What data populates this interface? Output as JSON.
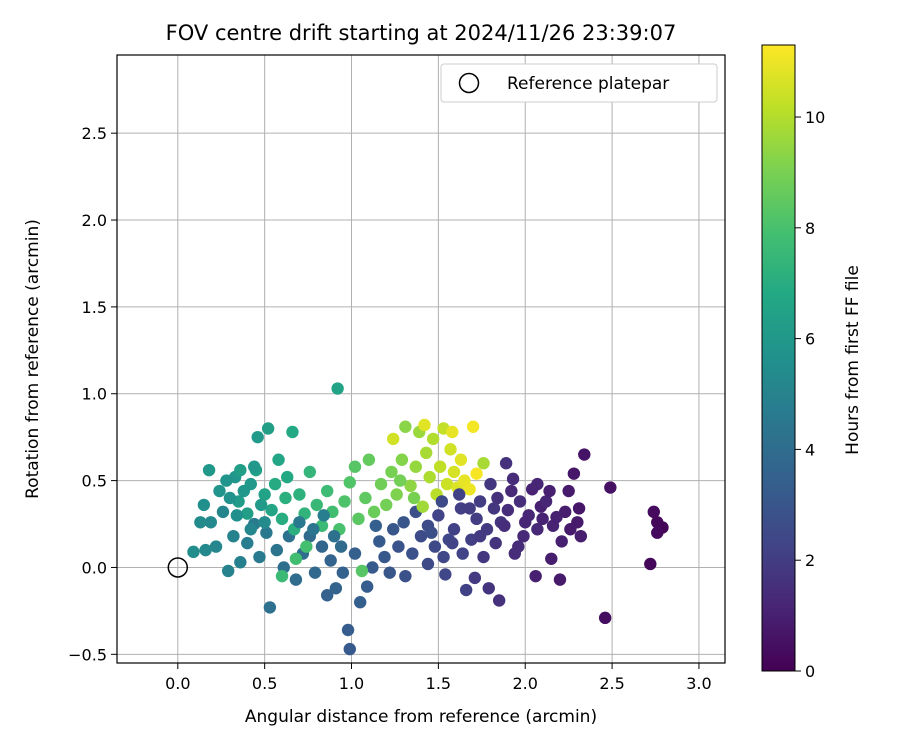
{
  "chart_data": {
    "type": "scatter",
    "title": "FOV centre drift starting at 2024/11/26 23:39:07",
    "xlabel": "Angular distance from reference (arcmin)",
    "ylabel": "Rotation from reference (arcmin)",
    "xlim": [
      -0.35,
      3.15
    ],
    "ylim": [
      -0.55,
      2.95
    ],
    "xticks": [
      "0.0",
      "0.5",
      "1.0",
      "1.5",
      "2.0",
      "2.5",
      "3.0"
    ],
    "yticks": [
      "−0.5",
      "0.0",
      "0.5",
      "1.0",
      "1.5",
      "2.0",
      "2.5"
    ],
    "grid": true,
    "legend": {
      "position": "top-right",
      "entries": [
        "Reference platepar"
      ]
    },
    "colorbar": {
      "label": "Hours from first FF file",
      "range": [
        0,
        11.3
      ],
      "ticks": [
        "0",
        "2",
        "4",
        "6",
        "8",
        "10"
      ],
      "colormap": "viridis"
    },
    "reference_point": {
      "x": 0.0,
      "y": 0.0
    },
    "points": [
      [
        2.79,
        0.23,
        0.1
      ],
      [
        2.76,
        0.26,
        0.2
      ],
      [
        2.76,
        0.2,
        0.3
      ],
      [
        2.74,
        0.32,
        0.3
      ],
      [
        2.72,
        0.02,
        0.2
      ],
      [
        2.49,
        0.46,
        0.5
      ],
      [
        2.46,
        -0.29,
        0.4
      ],
      [
        2.34,
        0.65,
        0.6
      ],
      [
        2.28,
        0.54,
        0.7
      ],
      [
        2.25,
        0.44,
        0.8
      ],
      [
        2.31,
        0.34,
        0.7
      ],
      [
        2.3,
        0.26,
        0.8
      ],
      [
        2.23,
        0.32,
        0.9
      ],
      [
        2.32,
        0.18,
        0.9
      ],
      [
        2.21,
        0.15,
        1.0
      ],
      [
        2.16,
        0.24,
        1.1
      ],
      [
        2.15,
        0.05,
        0.9
      ],
      [
        2.18,
        0.29,
        1.0
      ],
      [
        2.09,
        0.35,
        1.0
      ],
      [
        2.04,
        0.45,
        1.1
      ],
      [
        2.07,
        0.48,
        1.2
      ],
      [
        2.12,
        0.38,
        1.2
      ],
      [
        2.07,
        0.22,
        1.3
      ],
      [
        2.02,
        0.3,
        1.2
      ],
      [
        2.06,
        -0.05,
        1.0
      ],
      [
        2.2,
        -0.07,
        0.8
      ],
      [
        1.99,
        0.18,
        1.3
      ],
      [
        1.96,
        0.12,
        1.4
      ],
      [
        1.97,
        0.38,
        1.5
      ],
      [
        1.93,
        0.51,
        1.4
      ],
      [
        1.89,
        0.6,
        1.6
      ],
      [
        1.9,
        0.33,
        1.5
      ],
      [
        1.86,
        0.26,
        1.7
      ],
      [
        1.84,
        0.4,
        1.6
      ],
      [
        1.83,
        0.14,
        1.7
      ],
      [
        1.8,
        0.48,
        1.8
      ],
      [
        1.82,
        0.34,
        1.8
      ],
      [
        1.78,
        0.22,
        1.9
      ],
      [
        1.76,
        0.06,
        1.8
      ],
      [
        1.74,
        0.38,
        2.0
      ],
      [
        1.72,
        0.28,
        2.0
      ],
      [
        1.69,
        0.16,
        2.1
      ],
      [
        1.71,
        -0.06,
        1.9
      ],
      [
        1.85,
        -0.19,
        1.6
      ],
      [
        1.79,
        -0.12,
        1.7
      ],
      [
        1.66,
        -0.13,
        2.2
      ],
      [
        1.63,
        0.34,
        2.1
      ],
      [
        1.64,
        0.08,
        2.3
      ],
      [
        1.59,
        0.22,
        2.2
      ],
      [
        1.56,
        0.16,
        2.4
      ],
      [
        1.53,
        0.06,
        2.4
      ],
      [
        1.5,
        0.3,
        2.3
      ],
      [
        1.48,
        0.12,
        2.5
      ],
      [
        1.44,
        0.24,
        2.6
      ],
      [
        1.44,
        0.02,
        2.5
      ],
      [
        1.4,
        0.18,
        2.6
      ],
      [
        1.37,
        0.32,
        2.7
      ],
      [
        1.35,
        0.08,
        2.8
      ],
      [
        1.31,
        -0.05,
        2.8
      ],
      [
        1.27,
        0.12,
        2.9
      ],
      [
        1.24,
        0.22,
        3.0
      ],
      [
        1.22,
        -0.03,
        3.0
      ],
      [
        1.19,
        0.06,
        3.1
      ],
      [
        1.16,
        0.15,
        3.2
      ],
      [
        1.12,
        0.0,
        3.2
      ],
      [
        1.09,
        -0.11,
        3.3
      ],
      [
        1.05,
        -0.2,
        3.4
      ],
      [
        1.02,
        0.08,
        3.4
      ],
      [
        0.98,
        -0.36,
        3.3
      ],
      [
        0.99,
        -0.47,
        3.2
      ],
      [
        0.95,
        -0.03,
        3.5
      ],
      [
        0.91,
        -0.12,
        3.6
      ],
      [
        0.88,
        0.04,
        3.6
      ],
      [
        0.86,
        -0.16,
        3.5
      ],
      [
        0.83,
        0.12,
        3.7
      ],
      [
        0.79,
        -0.03,
        3.8
      ],
      [
        0.76,
        0.18,
        3.9
      ],
      [
        0.72,
        0.08,
        4.0
      ],
      [
        0.68,
        -0.07,
        4.0
      ],
      [
        0.64,
        0.18,
        4.2
      ],
      [
        0.61,
        0.0,
        4.1
      ],
      [
        0.57,
        0.1,
        4.3
      ],
      [
        0.53,
        -0.23,
        4.2
      ],
      [
        0.51,
        0.2,
        4.5
      ],
      [
        0.47,
        0.06,
        4.6
      ],
      [
        0.44,
        0.25,
        4.7
      ],
      [
        0.4,
        0.14,
        4.8
      ],
      [
        0.36,
        0.03,
        4.9
      ],
      [
        0.32,
        0.18,
        5.0
      ],
      [
        0.29,
        -0.02,
        5.0
      ],
      [
        0.26,
        0.32,
        5.1
      ],
      [
        0.22,
        0.12,
        5.2
      ],
      [
        0.19,
        0.26,
        5.3
      ],
      [
        0.16,
        0.1,
        5.3
      ],
      [
        0.13,
        0.26,
        5.4
      ],
      [
        0.09,
        0.09,
        5.5
      ],
      [
        0.15,
        0.36,
        5.6
      ],
      [
        0.24,
        0.44,
        5.8
      ],
      [
        0.33,
        0.52,
        5.9
      ],
      [
        0.42,
        0.48,
        6.0
      ],
      [
        0.46,
        0.75,
        6.1
      ],
      [
        0.52,
        0.8,
        6.3
      ],
      [
        0.18,
        0.56,
        6.0
      ],
      [
        0.35,
        0.38,
        6.2
      ],
      [
        0.4,
        0.31,
        6.3
      ],
      [
        0.45,
        0.56,
        6.4
      ],
      [
        0.5,
        0.42,
        6.5
      ],
      [
        0.54,
        0.33,
        6.6
      ],
      [
        0.58,
        0.62,
        6.7
      ],
      [
        0.63,
        0.52,
        6.8
      ],
      [
        0.66,
        0.78,
        6.8
      ],
      [
        0.92,
        1.03,
        6.5
      ],
      [
        0.6,
        0.28,
        7.0
      ],
      [
        0.67,
        0.22,
        7.1
      ],
      [
        0.7,
        0.42,
        7.2
      ],
      [
        0.73,
        0.31,
        7.3
      ],
      [
        0.76,
        0.55,
        7.4
      ],
      [
        0.8,
        0.36,
        7.5
      ],
      [
        0.83,
        0.24,
        7.6
      ],
      [
        0.86,
        0.44,
        7.7
      ],
      [
        0.89,
        0.32,
        7.8
      ],
      [
        0.6,
        -0.05,
        7.6
      ],
      [
        0.68,
        0.05,
        7.8
      ],
      [
        0.74,
        0.12,
        7.9
      ],
      [
        0.93,
        0.22,
        8.0
      ],
      [
        0.96,
        0.38,
        8.1
      ],
      [
        0.99,
        0.49,
        8.2
      ],
      [
        1.02,
        0.58,
        8.3
      ],
      [
        1.04,
        0.28,
        8.4
      ],
      [
        1.08,
        0.4,
        8.5
      ],
      [
        1.1,
        0.62,
        8.6
      ],
      [
        1.13,
        0.32,
        8.7
      ],
      [
        1.06,
        -0.02,
        8.3
      ],
      [
        1.17,
        0.48,
        8.8
      ],
      [
        1.2,
        0.36,
        8.9
      ],
      [
        1.23,
        0.55,
        9.0
      ],
      [
        1.26,
        0.42,
        9.1
      ],
      [
        1.29,
        0.62,
        9.2
      ],
      [
        1.31,
        0.81,
        9.3
      ],
      [
        1.34,
        0.47,
        9.4
      ],
      [
        1.37,
        0.58,
        9.5
      ],
      [
        1.39,
        0.78,
        9.6
      ],
      [
        1.41,
        0.35,
        9.7
      ],
      [
        1.43,
        0.66,
        9.8
      ],
      [
        1.45,
        0.52,
        9.9
      ],
      [
        1.47,
        0.74,
        10.0
      ],
      [
        1.49,
        0.42,
        10.1
      ],
      [
        1.51,
        0.58,
        10.2
      ],
      [
        1.53,
        0.8,
        10.3
      ],
      [
        1.55,
        0.48,
        10.4
      ],
      [
        1.57,
        0.68,
        10.5
      ],
      [
        1.59,
        0.55,
        10.6
      ],
      [
        1.61,
        0.46,
        10.7
      ],
      [
        1.63,
        0.62,
        10.8
      ],
      [
        1.65,
        0.5,
        10.9
      ],
      [
        1.68,
        0.45,
        11.0
      ],
      [
        1.7,
        0.81,
        11.1
      ],
      [
        1.72,
        0.54,
        11.2
      ],
      [
        1.24,
        0.74,
        10.5
      ],
      [
        1.42,
        0.82,
        10.8
      ],
      [
        1.58,
        0.78,
        10.9
      ],
      [
        1.76,
        0.6,
        9.8
      ],
      [
        1.36,
        0.4,
        9.0
      ],
      [
        1.28,
        0.5,
        8.9
      ],
      [
        0.3,
        0.4,
        5.7
      ],
      [
        0.34,
        0.3,
        5.6
      ],
      [
        0.38,
        0.44,
        5.9
      ],
      [
        0.42,
        0.22,
        5.2
      ],
      [
        0.48,
        0.36,
        6.1
      ],
      [
        0.56,
        0.48,
        6.9
      ],
      [
        0.62,
        0.4,
        7.1
      ],
      [
        0.28,
        0.5,
        5.8
      ],
      [
        0.44,
        0.58,
        6.0
      ],
      [
        0.5,
        0.26,
        5.4
      ],
      [
        0.36,
        0.56,
        6.3
      ],
      [
        0.7,
        0.26,
        4.6
      ],
      [
        0.78,
        0.22,
        4.4
      ],
      [
        0.84,
        0.3,
        4.8
      ],
      [
        0.9,
        0.18,
        4.2
      ],
      [
        0.94,
        0.12,
        3.9
      ],
      [
        1.14,
        0.24,
        3.4
      ],
      [
        1.3,
        0.26,
        3.0
      ],
      [
        1.46,
        0.2,
        2.7
      ],
      [
        1.52,
        0.38,
        2.5
      ],
      [
        1.58,
        0.14,
        2.3
      ],
      [
        1.62,
        0.42,
        2.2
      ],
      [
        1.68,
        0.34,
        2.0
      ],
      [
        1.74,
        0.18,
        1.9
      ],
      [
        1.88,
        0.24,
        1.5
      ],
      [
        1.92,
        0.44,
        1.3
      ],
      [
        2.0,
        0.26,
        1.2
      ],
      [
        2.1,
        0.28,
        1.1
      ],
      [
        2.14,
        0.44,
        1.0
      ],
      [
        2.26,
        0.22,
        0.8
      ],
      [
        1.94,
        0.08,
        1.4
      ],
      [
        1.54,
        -0.04,
        2.4
      ]
    ]
  }
}
